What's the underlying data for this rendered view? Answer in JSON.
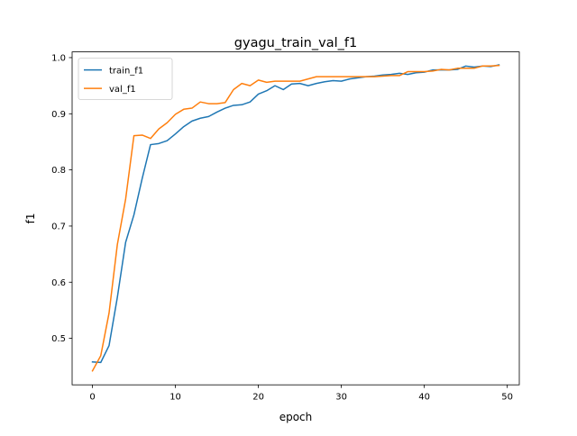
{
  "chart_data": {
    "type": "line",
    "title": "gyagu_train_val_f1",
    "xlabel": "epoch",
    "ylabel": "f1",
    "xlim": [
      -2.45,
      51.45
    ],
    "ylim": [
      0.4172,
      1.0102
    ],
    "xticks": [
      0,
      10,
      20,
      30,
      40,
      50
    ],
    "xtick_labels": [
      "0",
      "10",
      "20",
      "30",
      "40",
      "50"
    ],
    "yticks": [
      0.5,
      0.6,
      0.7,
      0.8,
      0.9,
      1.0
    ],
    "ytick_labels": [
      "0.5",
      "0.6",
      "0.7",
      "0.8",
      "0.9",
      "1.0"
    ],
    "grid": false,
    "legend_position": "upper-left",
    "x": [
      0,
      1,
      2,
      3,
      4,
      5,
      6,
      7,
      8,
      9,
      10,
      11,
      12,
      13,
      14,
      15,
      16,
      17,
      18,
      19,
      20,
      21,
      22,
      23,
      24,
      25,
      26,
      27,
      28,
      29,
      30,
      31,
      32,
      33,
      34,
      35,
      36,
      37,
      38,
      39,
      40,
      41,
      42,
      43,
      44,
      45,
      46,
      47,
      48,
      49
    ],
    "series": [
      {
        "name": "train_f1",
        "color": "#1f77b4",
        "values": [
          0.458,
          0.457,
          0.487,
          0.573,
          0.671,
          0.72,
          0.785,
          0.845,
          0.847,
          0.852,
          0.864,
          0.877,
          0.887,
          0.892,
          0.895,
          0.903,
          0.91,
          0.915,
          0.916,
          0.921,
          0.935,
          0.941,
          0.95,
          0.943,
          0.953,
          0.954,
          0.95,
          0.954,
          0.957,
          0.959,
          0.958,
          0.962,
          0.964,
          0.966,
          0.967,
          0.969,
          0.97,
          0.972,
          0.97,
          0.973,
          0.974,
          0.978,
          0.978,
          0.978,
          0.979,
          0.985,
          0.983,
          0.985,
          0.984,
          0.987
        ]
      },
      {
        "name": "val_f1",
        "color": "#ff7f0e",
        "values": [
          0.442,
          0.469,
          0.545,
          0.667,
          0.748,
          0.861,
          0.862,
          0.856,
          0.873,
          0.884,
          0.899,
          0.908,
          0.91,
          0.921,
          0.918,
          0.918,
          0.92,
          0.943,
          0.954,
          0.95,
          0.96,
          0.956,
          0.958,
          0.958,
          0.958,
          0.958,
          0.962,
          0.966,
          0.966,
          0.966,
          0.966,
          0.966,
          0.966,
          0.966,
          0.966,
          0.967,
          0.968,
          0.968,
          0.975,
          0.975,
          0.975,
          0.976,
          0.979,
          0.978,
          0.981,
          0.981,
          0.981,
          0.985,
          0.985,
          0.986
        ]
      }
    ]
  }
}
